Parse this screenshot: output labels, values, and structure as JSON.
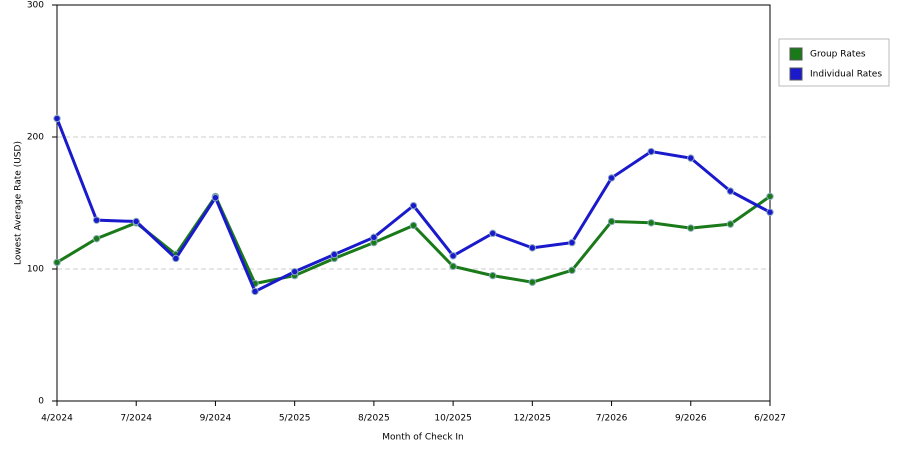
{
  "chart_data": {
    "type": "line",
    "x_label": "Month of Check In",
    "y_label": "Lowest Average Rate (USD)",
    "categories": [
      "4/2024",
      null,
      "7/2024",
      null,
      "9/2024",
      null,
      "5/2025",
      null,
      "8/2025",
      null,
      "10/2025",
      null,
      "12/2025",
      null,
      "7/2026",
      null,
      "9/2026",
      null,
      "6/2027"
    ],
    "series": [
      {
        "name": "Group Rates",
        "color": "#1a7a1a",
        "values": [
          105,
          123,
          135,
          111,
          155,
          89,
          95,
          108,
          120,
          133,
          102,
          95,
          90,
          99,
          136,
          135,
          131,
          134,
          155
        ]
      },
      {
        "name": "Individual Rates",
        "color": "#1a1acc",
        "values": [
          214,
          137,
          136,
          108,
          154,
          83,
          98,
          111,
          124,
          148,
          110,
          127,
          116,
          120,
          169,
          189,
          184,
          159,
          143
        ]
      }
    ],
    "ylim": [
      0,
      300
    ],
    "yticks": [
      0,
      100,
      200,
      300
    ],
    "grid": true,
    "legend": "right"
  }
}
